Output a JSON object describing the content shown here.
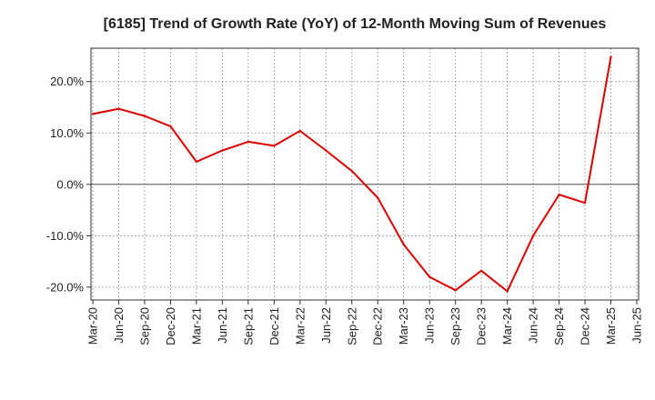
{
  "chart_data": {
    "type": "line",
    "title": "[6185]  Trend of Growth Rate (YoY) of 12-Month Moving Sum of Revenues",
    "xlabel": "",
    "ylabel": "",
    "x_tick_labels": [
      "Mar-20",
      "Jun-20",
      "Sep-20",
      "Dec-20",
      "Mar-21",
      "Jun-21",
      "Sep-21",
      "Dec-21",
      "Mar-22",
      "Jun-22",
      "Sep-22",
      "Dec-22",
      "Mar-23",
      "Jun-23",
      "Sep-23",
      "Dec-23",
      "Mar-24",
      "Jun-24",
      "Sep-24",
      "Dec-24",
      "Mar-25",
      "Jun-25"
    ],
    "y_ticks": [
      20,
      10,
      0,
      -10,
      -20
    ],
    "y_tick_labels": [
      "20.0%",
      "10.0%",
      "0.0%",
      "-10.0%",
      "-20.0%"
    ],
    "ylim": [
      -22.5,
      26.5
    ],
    "grid": true,
    "series": [
      {
        "color": "#dd0000",
        "x": [
          "Mar-20",
          "Jun-20",
          "Sep-20",
          "Dec-20",
          "Mar-21",
          "Jun-21",
          "Sep-21",
          "Dec-21",
          "Mar-22",
          "Jun-22",
          "Sep-22",
          "Dec-22",
          "Mar-23",
          "Jun-23",
          "Sep-23",
          "Dec-23",
          "Mar-24",
          "Jun-24",
          "Sep-24",
          "Dec-24",
          "Mar-25"
        ],
        "values": [
          13.7,
          14.7,
          13.3,
          11.3,
          4.4,
          6.6,
          8.3,
          7.5,
          10.4,
          6.6,
          2.6,
          -2.6,
          -11.7,
          -18.0,
          -20.6,
          -16.8,
          -20.8,
          -10.0,
          -2.0,
          -3.6,
          24.8
        ]
      }
    ]
  }
}
